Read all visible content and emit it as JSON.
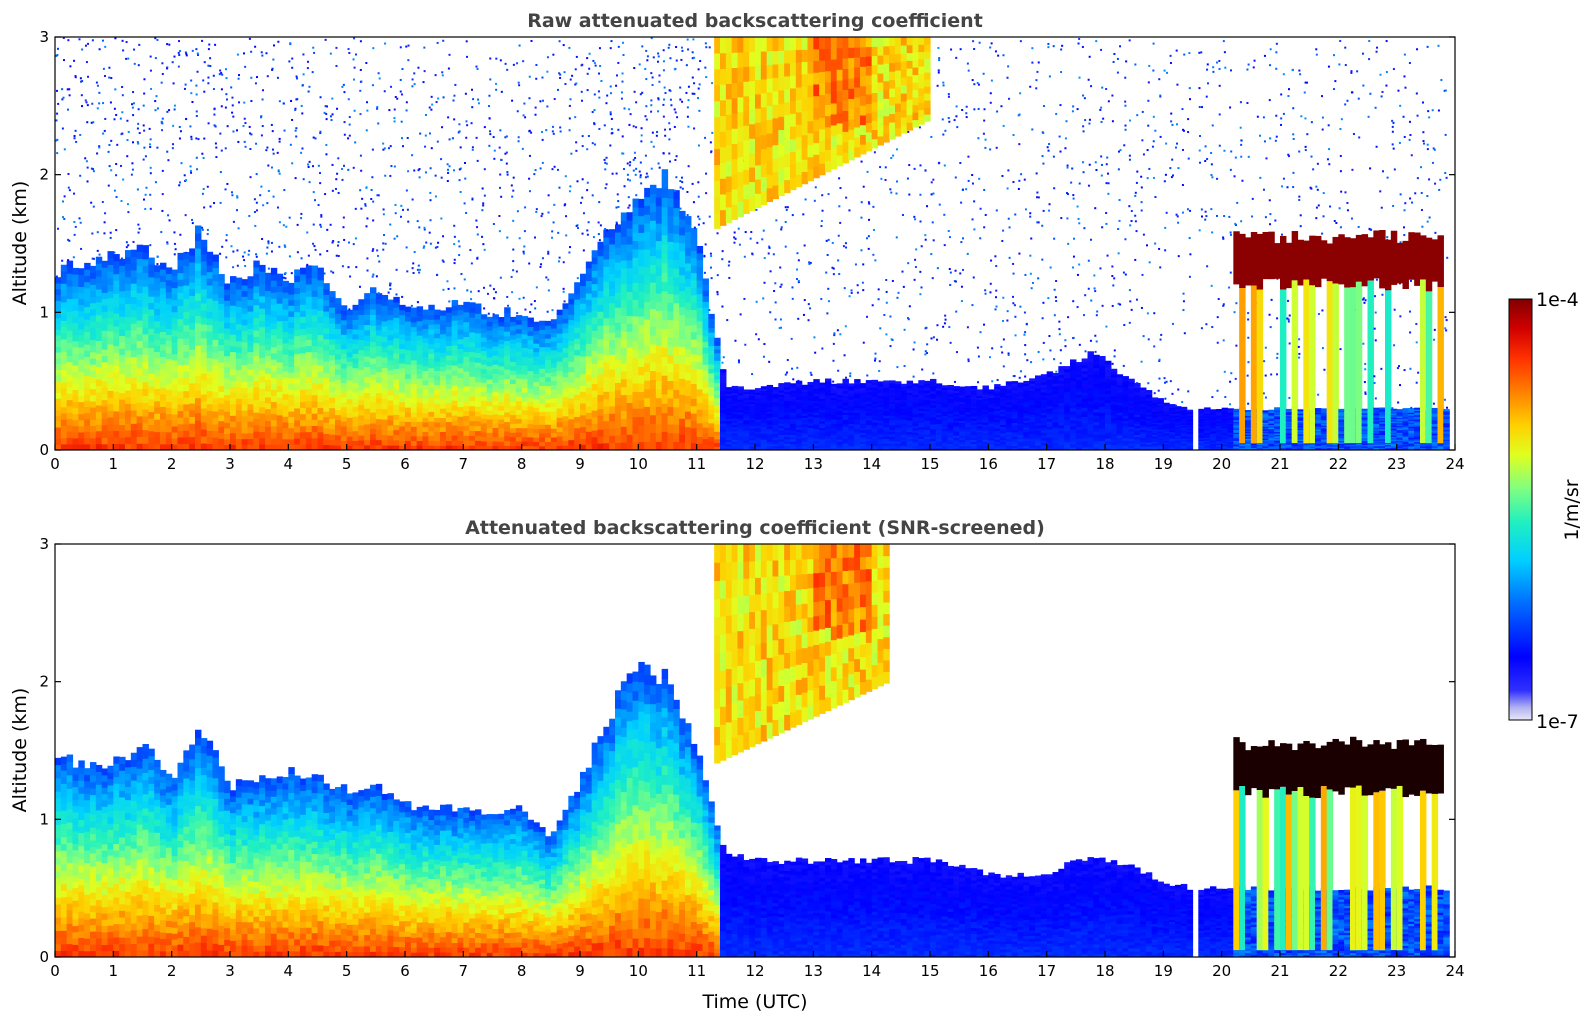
{
  "chart_data": [
    {
      "type": "heatmap",
      "title": "Raw attenuated backscattering coefficient",
      "xlabel": "",
      "ylabel": "Altitude (km)",
      "xlim": [
        0,
        24
      ],
      "ylim": [
        0,
        3
      ],
      "x_ticks": [
        0,
        1,
        2,
        3,
        4,
        5,
        6,
        7,
        8,
        9,
        10,
        11,
        12,
        13,
        14,
        15,
        16,
        17,
        18,
        19,
        20,
        21,
        22,
        23,
        24
      ],
      "y_ticks": [
        0,
        1,
        2,
        3
      ],
      "scale": "log",
      "data_gaps_hours": [
        19.55
      ],
      "boundary_layer_top_km": [
        [
          0,
          1.3
        ],
        [
          0.5,
          1.35
        ],
        [
          1,
          1.4
        ],
        [
          1.5,
          1.45
        ],
        [
          2,
          1.3
        ],
        [
          2.5,
          1.6
        ],
        [
          3,
          1.2
        ],
        [
          3.5,
          1.35
        ],
        [
          4,
          1.25
        ],
        [
          4.5,
          1.35
        ],
        [
          5,
          1.05
        ],
        [
          5.5,
          1.15
        ],
        [
          6,
          1.05
        ],
        [
          6.5,
          1.05
        ],
        [
          7,
          1.05
        ],
        [
          7.5,
          1.0
        ],
        [
          8,
          1.0
        ],
        [
          8.5,
          0.9
        ],
        [
          9,
          1.3
        ],
        [
          9.5,
          1.6
        ],
        [
          10,
          1.8
        ],
        [
          10.5,
          2.0
        ],
        [
          11,
          1.6
        ],
        [
          11.5,
          0.45
        ],
        [
          12,
          0.45
        ],
        [
          13,
          0.5
        ],
        [
          14,
          0.5
        ],
        [
          15,
          0.5
        ],
        [
          16,
          0.45
        ],
        [
          17,
          0.55
        ],
        [
          17.8,
          0.7
        ],
        [
          18.5,
          0.5
        ],
        [
          19,
          0.35
        ],
        [
          19.5,
          0.3
        ],
        [
          20,
          0.3
        ],
        [
          21,
          0.3
        ],
        [
          22,
          0.3
        ],
        [
          23,
          0.3
        ],
        [
          23.8,
          0.3
        ]
      ],
      "elevated_layer": {
        "x_range": [
          11.3,
          15.0
        ],
        "base_km": [
          1.6,
          2.4
        ],
        "top_km": 3.0
      },
      "cloud_layer": {
        "x_range": [
          20.2,
          23.8
        ],
        "altitude_km": [
          1.2,
          1.55
        ]
      }
    },
    {
      "type": "heatmap",
      "title": "Attenuated backscattering coefficient (SNR-screened)",
      "xlabel": "Time (UTC)",
      "ylabel": "Altitude (km)",
      "xlim": [
        0,
        24
      ],
      "ylim": [
        0,
        3
      ],
      "x_ticks": [
        0,
        1,
        2,
        3,
        4,
        5,
        6,
        7,
        8,
        9,
        10,
        11,
        12,
        13,
        14,
        15,
        16,
        17,
        18,
        19,
        20,
        21,
        22,
        23,
        24
      ],
      "y_ticks": [
        0,
        1,
        2,
        3
      ],
      "scale": "log",
      "data_gaps_hours": [
        19.55
      ],
      "boundary_layer_top_km": [
        [
          0,
          1.45
        ],
        [
          0.5,
          1.4
        ],
        [
          1,
          1.4
        ],
        [
          1.5,
          1.55
        ],
        [
          2,
          1.3
        ],
        [
          2.5,
          1.7
        ],
        [
          3,
          1.25
        ],
        [
          3.5,
          1.3
        ],
        [
          4,
          1.35
        ],
        [
          4.5,
          1.3
        ],
        [
          5,
          1.2
        ],
        [
          5.5,
          1.25
        ],
        [
          6,
          1.1
        ],
        [
          6.5,
          1.1
        ],
        [
          7,
          1.1
        ],
        [
          7.5,
          1.0
        ],
        [
          8,
          1.1
        ],
        [
          8.5,
          0.85
        ],
        [
          9,
          1.25
        ],
        [
          9.5,
          1.75
        ],
        [
          10,
          2.2
        ],
        [
          10.5,
          2.0
        ],
        [
          11,
          1.5
        ],
        [
          11.5,
          0.75
        ],
        [
          12,
          0.7
        ],
        [
          13,
          0.7
        ],
        [
          14,
          0.7
        ],
        [
          15,
          0.7
        ],
        [
          16,
          0.6
        ],
        [
          17,
          0.6
        ],
        [
          17.8,
          0.75
        ],
        [
          18.5,
          0.65
        ],
        [
          19,
          0.55
        ],
        [
          19.5,
          0.5
        ],
        [
          20,
          0.5
        ],
        [
          21,
          0.5
        ],
        [
          22,
          0.5
        ],
        [
          23,
          0.5
        ],
        [
          23.8,
          0.5
        ]
      ],
      "elevated_layer": {
        "x_range": [
          11.3,
          14.3
        ],
        "base_km": [
          1.4,
          2.0
        ],
        "top_km": 3.0
      },
      "cloud_layer": {
        "x_range": [
          20.2,
          23.8
        ],
        "altitude_km": [
          1.2,
          1.55
        ]
      }
    }
  ],
  "colorbar": {
    "label": "1/m/sr",
    "min_label": "1e-7",
    "max_label": "1e-4",
    "colormap": [
      "#000080",
      "#0000ff",
      "#0080ff",
      "#00ffff",
      "#80ff80",
      "#ffff00",
      "#ff8000",
      "#ff0000",
      "#800000"
    ]
  }
}
